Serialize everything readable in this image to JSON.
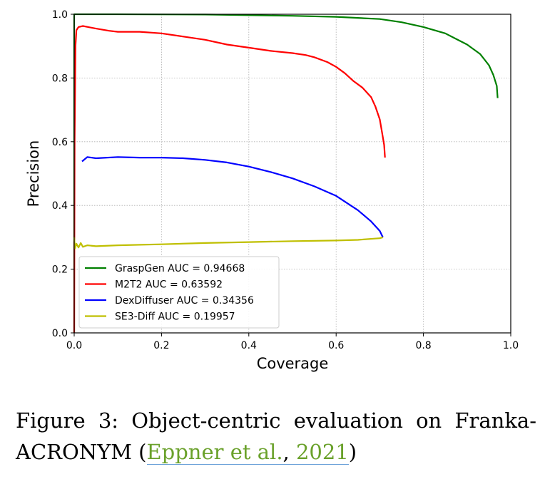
{
  "chart_data": {
    "type": "line",
    "xlabel": "Coverage",
    "ylabel": "Precision",
    "xlim": [
      0.0,
      1.0
    ],
    "ylim": [
      0.0,
      1.0
    ],
    "xticks": [
      "0.0",
      "0.2",
      "0.4",
      "0.6",
      "0.8",
      "1.0"
    ],
    "yticks": [
      "0.0",
      "0.2",
      "0.4",
      "0.6",
      "0.8",
      "1.0"
    ],
    "grid": true,
    "legend_position": "lower-left",
    "series": [
      {
        "name": "GraspGen AUC = 0.94668",
        "color": "#008000",
        "x": [
          0.0,
          0.0,
          0.01,
          0.1,
          0.3,
          0.5,
          0.6,
          0.7,
          0.75,
          0.8,
          0.85,
          0.9,
          0.93,
          0.95,
          0.96,
          0.968,
          0.97
        ],
        "y": [
          0.0,
          1.0,
          1.0,
          1.0,
          0.999,
          0.995,
          0.992,
          0.985,
          0.975,
          0.96,
          0.94,
          0.905,
          0.875,
          0.84,
          0.81,
          0.775,
          0.737
        ]
      },
      {
        "name": "M2T2 AUC = 0.63592",
        "color": "#ff0000",
        "x": [
          0.0,
          0.001,
          0.003,
          0.005,
          0.01,
          0.02,
          0.05,
          0.08,
          0.1,
          0.15,
          0.2,
          0.25,
          0.3,
          0.35,
          0.4,
          0.45,
          0.5,
          0.53,
          0.55,
          0.58,
          0.6,
          0.62,
          0.64,
          0.66,
          0.68,
          0.69,
          0.7,
          0.705,
          0.71,
          0.712
        ],
        "y": [
          0.0,
          0.6,
          0.9,
          0.95,
          0.96,
          0.963,
          0.955,
          0.948,
          0.945,
          0.945,
          0.94,
          0.93,
          0.92,
          0.905,
          0.895,
          0.885,
          0.878,
          0.872,
          0.865,
          0.85,
          0.835,
          0.815,
          0.79,
          0.77,
          0.74,
          0.71,
          0.67,
          0.63,
          0.59,
          0.55
        ]
      },
      {
        "name": "DexDiffuser AUC = 0.34356",
        "color": "#0000ff",
        "x": [
          0.018,
          0.03,
          0.05,
          0.1,
          0.15,
          0.2,
          0.25,
          0.3,
          0.35,
          0.4,
          0.45,
          0.5,
          0.55,
          0.6,
          0.65,
          0.68,
          0.7,
          0.707
        ],
        "y": [
          0.538,
          0.552,
          0.548,
          0.552,
          0.55,
          0.55,
          0.548,
          0.543,
          0.535,
          0.522,
          0.505,
          0.485,
          0.46,
          0.43,
          0.385,
          0.35,
          0.32,
          0.3
        ]
      },
      {
        "name": "SE3-Diff AUC = 0.19957",
        "color": "#bfbf00",
        "x": [
          0.0,
          0.002,
          0.005,
          0.01,
          0.015,
          0.02,
          0.03,
          0.05,
          0.1,
          0.2,
          0.3,
          0.4,
          0.5,
          0.6,
          0.65,
          0.7,
          0.707
        ],
        "y": [
          0.3,
          0.265,
          0.28,
          0.268,
          0.282,
          0.27,
          0.275,
          0.272,
          0.275,
          0.278,
          0.282,
          0.285,
          0.288,
          0.29,
          0.292,
          0.297,
          0.3
        ]
      }
    ]
  },
  "caption": {
    "line1": "Figure 3: Object-centric evaluation on Franka-",
    "line2_prefix": "ACRONYM  (",
    "cite_authors": "Eppner et al.",
    "cite_sep": ", ",
    "cite_year": "2021",
    "line2_suffix": ")"
  }
}
